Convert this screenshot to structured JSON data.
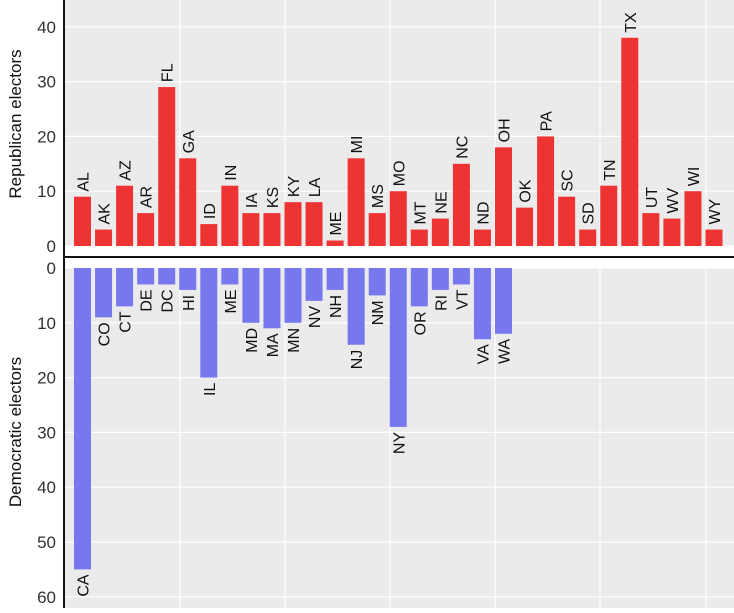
{
  "chart_data": [
    {
      "type": "bar",
      "ylabel": "Republican electors",
      "ylim": [
        0,
        45
      ],
      "yticks": [
        0,
        10,
        20,
        30,
        40
      ],
      "color": "#ee3333",
      "grid": true,
      "categories": [
        "AL",
        "AK",
        "AZ",
        "AR",
        "FL",
        "GA",
        "ID",
        "IN",
        "IA",
        "KS",
        "KY",
        "LA",
        "ME",
        "MI",
        "MS",
        "MO",
        "MT",
        "NE",
        "NC",
        "ND",
        "OH",
        "OK",
        "PA",
        "SC",
        "SD",
        "TN",
        "TX",
        "UT",
        "WV",
        "WI",
        "WY"
      ],
      "slots": [
        0,
        1,
        2,
        3,
        4,
        5,
        6,
        7,
        8,
        9,
        10,
        11,
        12,
        13,
        14,
        15,
        16,
        17,
        18,
        19,
        20,
        21,
        22,
        23,
        24,
        25,
        26,
        27,
        28,
        29,
        30
      ],
      "values": [
        9,
        3,
        11,
        6,
        29,
        16,
        4,
        11,
        6,
        6,
        8,
        8,
        1,
        16,
        6,
        10,
        3,
        5,
        15,
        3,
        18,
        7,
        20,
        9,
        3,
        11,
        38,
        6,
        5,
        10,
        3
      ]
    },
    {
      "type": "bar",
      "ylabel": "Democratic electors",
      "ylim": [
        0,
        60
      ],
      "yticks": [
        0,
        10,
        20,
        30,
        40,
        50,
        60
      ],
      "inverted": true,
      "color": "#7777ee",
      "grid": true,
      "categories": [
        "CA",
        "CO",
        "CT",
        "DE",
        "DC",
        "HI",
        "IL",
        "ME",
        "MD",
        "MA",
        "MN",
        "NV",
        "NH",
        "NJ",
        "NM",
        "NY",
        "OR",
        "RI",
        "VT",
        "VA",
        "WA"
      ],
      "slots": [
        0,
        1,
        2,
        3,
        4,
        5,
        6,
        7,
        8,
        9,
        10,
        11,
        12,
        13,
        14,
        15,
        16,
        17,
        18,
        19,
        20
      ],
      "values": [
        55,
        9,
        7,
        3,
        3,
        4,
        20,
        3,
        10,
        11,
        10,
        6,
        4,
        14,
        5,
        29,
        7,
        4,
        3,
        13,
        12
      ]
    }
  ]
}
